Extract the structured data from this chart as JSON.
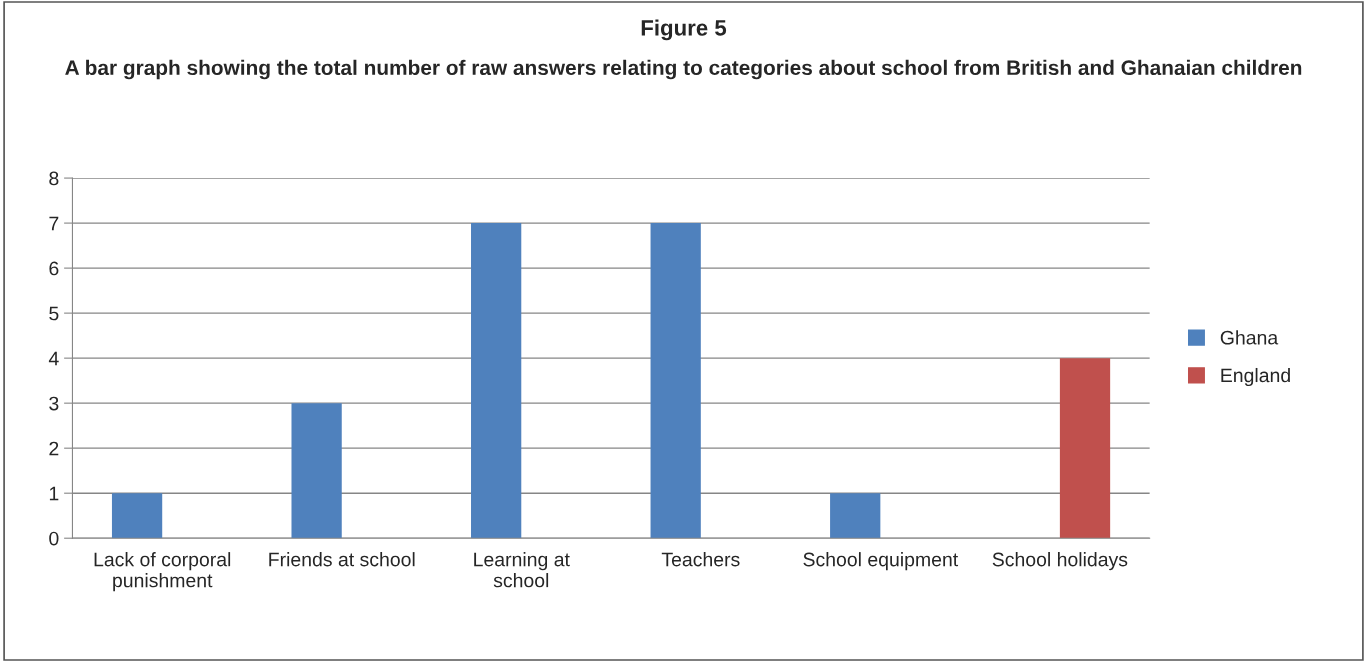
{
  "chart_data": {
    "type": "bar",
    "title": "Figure 5",
    "subtitle": "A bar graph showing the total number of raw answers relating to categories about school from British and Ghanaian children",
    "categories": [
      "Lack of corporal punishment",
      "Friends at school",
      "Learning at school",
      "Teachers",
      "School equipment",
      "School holidays"
    ],
    "series": [
      {
        "name": "Ghana",
        "color": "#4f81bd",
        "values": [
          1,
          3,
          7,
          7,
          1,
          null
        ]
      },
      {
        "name": "England",
        "color": "#c0504d",
        "values": [
          null,
          null,
          null,
          null,
          null,
          4
        ]
      }
    ],
    "ylim": [
      0,
      8
    ],
    "yticks": [
      0,
      1,
      2,
      3,
      4,
      5,
      6,
      7,
      8
    ],
    "grid": "y",
    "legend": "right"
  }
}
